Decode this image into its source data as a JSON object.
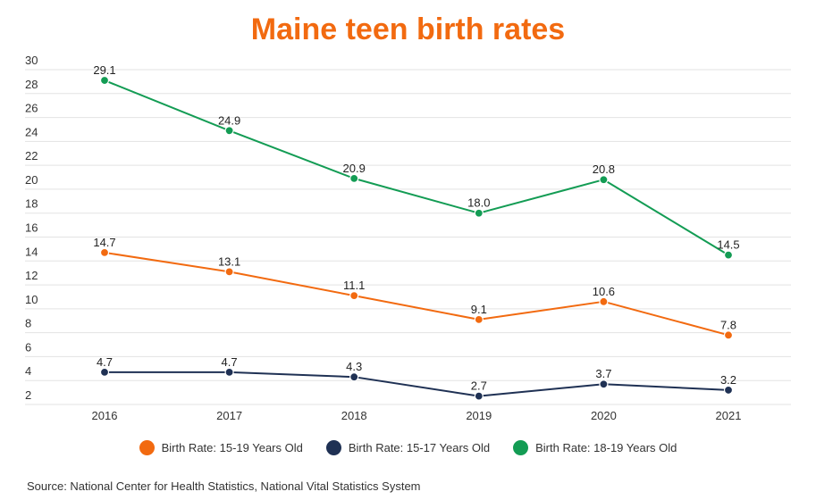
{
  "chart_data": {
    "type": "line",
    "title": "Maine teen birth rates",
    "categories": [
      "2016",
      "2017",
      "2018",
      "2019",
      "2020",
      "2021"
    ],
    "ylim": [
      2,
      30
    ],
    "yticks": [
      2,
      4,
      6,
      8,
      10,
      12,
      14,
      16,
      18,
      20,
      22,
      24,
      26,
      28,
      30
    ],
    "grid": true,
    "legend_position": "bottom",
    "series": [
      {
        "name": "Birth Rate: 15-19 Years Old",
        "color": "#f26a10",
        "values": [
          14.7,
          13.1,
          11.1,
          9.1,
          10.6,
          7.8
        ],
        "labels": [
          "14.7",
          "13.1",
          "11.1",
          "9.1",
          "10.6",
          "7.8"
        ]
      },
      {
        "name": "Birth Rate: 15-17 Years Old",
        "color": "#1f3154",
        "values": [
          4.7,
          4.7,
          4.3,
          2.7,
          3.7,
          3.2
        ],
        "labels": [
          "4.7",
          "4.7",
          "4.3",
          "2.7",
          "3.7",
          "3.2"
        ]
      },
      {
        "name": "Birth Rate: 18-19 Years Old",
        "color": "#139c54",
        "values": [
          29.1,
          24.9,
          20.9,
          18.0,
          20.8,
          14.5
        ],
        "labels": [
          "29.1",
          "24.9",
          "20.9",
          "18.0",
          "20.8",
          "14.5"
        ]
      }
    ],
    "source": "Source: National Center for Health Statistics, National Vital Statistics System"
  }
}
